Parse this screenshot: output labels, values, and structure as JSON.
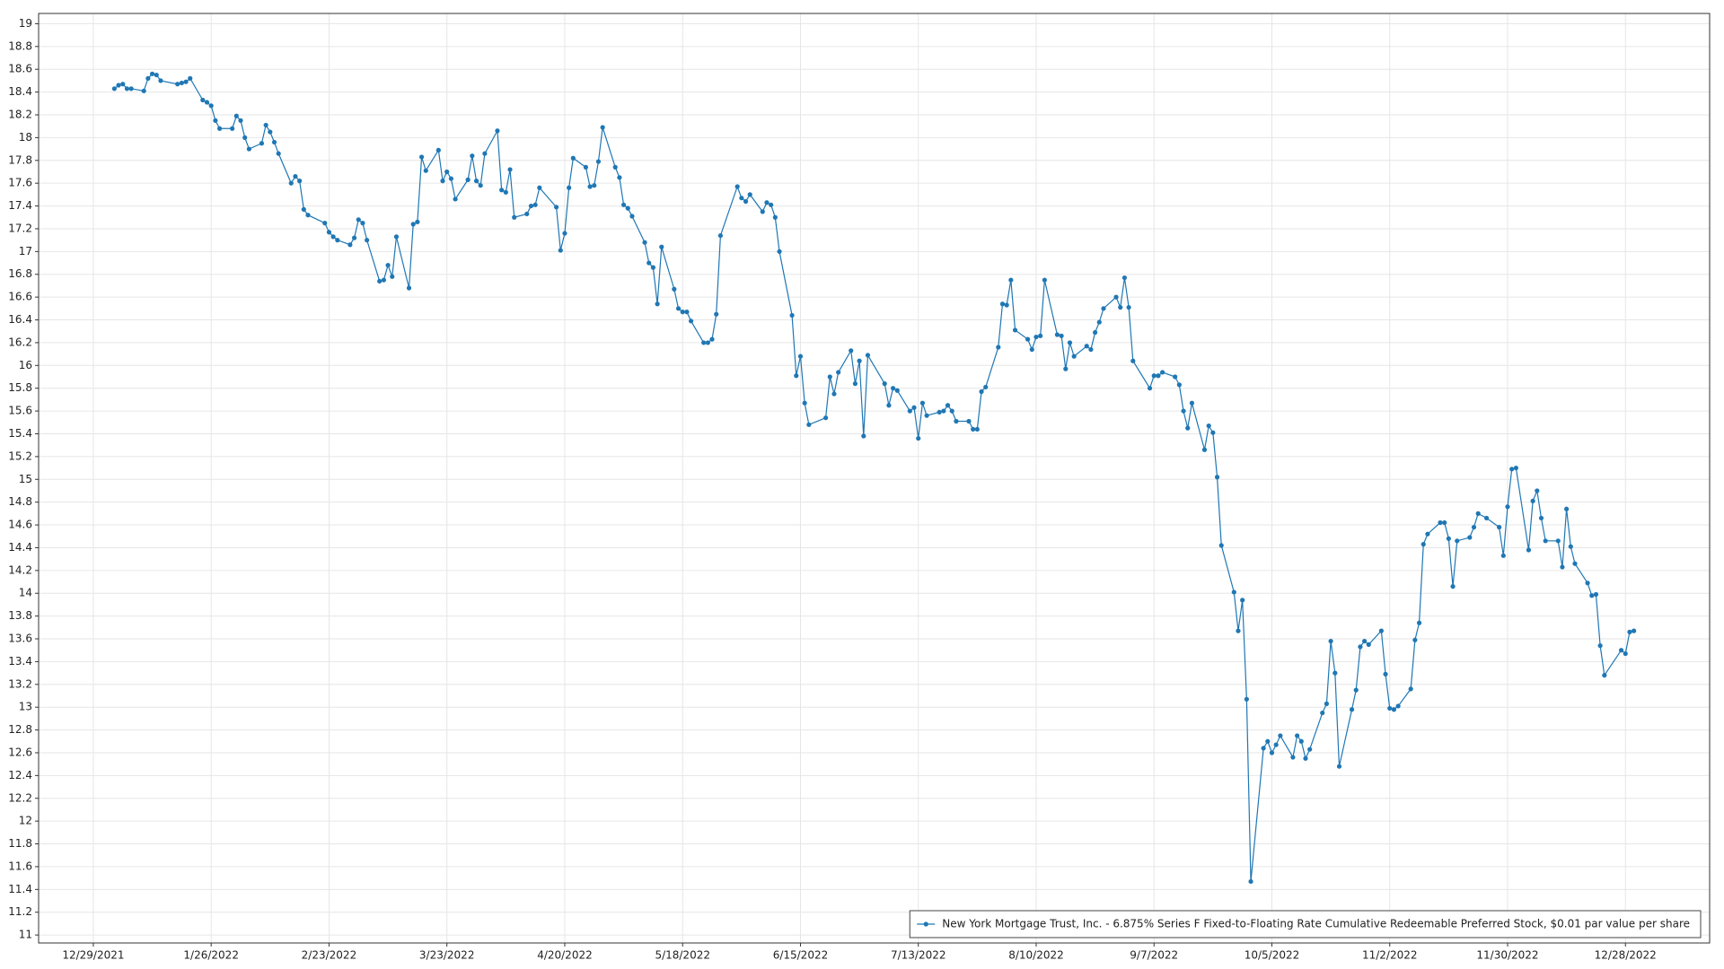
{
  "chart_data": {
    "type": "line",
    "xlim": [
      "12/16/2021",
      "1/17/2023"
    ],
    "xticks": [
      "12/29/2021",
      "1/26/2022",
      "2/23/2022",
      "3/23/2022",
      "4/20/2022",
      "5/18/2022",
      "6/15/2022",
      "7/13/2022",
      "8/10/2022",
      "9/7/2022",
      "10/5/2022",
      "11/2/2022",
      "11/30/2022",
      "12/28/2022"
    ],
    "ylim": [
      10.93,
      19.09
    ],
    "yticks": [
      11,
      11.2,
      11.4,
      11.6,
      11.8,
      12,
      12.2,
      12.4,
      12.6,
      12.8,
      13,
      13.2,
      13.4,
      13.6,
      13.8,
      14,
      14.2,
      14.4,
      14.6,
      14.8,
      15,
      15.2,
      15.4,
      15.6,
      15.8,
      16,
      16.2,
      16.4,
      16.6,
      16.8,
      17,
      17.2,
      17.4,
      17.6,
      17.8,
      18,
      18.2,
      18.4,
      18.6,
      18.8,
      19
    ],
    "grid": true,
    "legend": "bottom-right",
    "x": [
      "1/3/2022",
      "1/4/2022",
      "1/5/2022",
      "1/6/2022",
      "1/7/2022",
      "1/10/2022",
      "1/11/2022",
      "1/12/2022",
      "1/13/2022",
      "1/14/2022",
      "1/18/2022",
      "1/19/2022",
      "1/20/2022",
      "1/21/2022",
      "1/24/2022",
      "1/25/2022",
      "1/26/2022",
      "1/27/2022",
      "1/28/2022",
      "1/31/2022",
      "2/1/2022",
      "2/2/2022",
      "2/3/2022",
      "2/4/2022",
      "2/7/2022",
      "2/8/2022",
      "2/9/2022",
      "2/10/2022",
      "2/11/2022",
      "2/14/2022",
      "2/15/2022",
      "2/16/2022",
      "2/17/2022",
      "2/18/2022",
      "2/22/2022",
      "2/23/2022",
      "2/24/2022",
      "2/25/2022",
      "2/28/2022",
      "3/1/2022",
      "3/2/2022",
      "3/3/2022",
      "3/4/2022",
      "3/7/2022",
      "3/8/2022",
      "3/9/2022",
      "3/10/2022",
      "3/11/2022",
      "3/14/2022",
      "3/15/2022",
      "3/16/2022",
      "3/17/2022",
      "3/18/2022",
      "3/21/2022",
      "3/22/2022",
      "3/23/2022",
      "3/24/2022",
      "3/25/2022",
      "3/28/2022",
      "3/29/2022",
      "3/30/2022",
      "3/31/2022",
      "4/1/2022",
      "4/4/2022",
      "4/5/2022",
      "4/6/2022",
      "4/7/2022",
      "4/8/2022",
      "4/11/2022",
      "4/12/2022",
      "4/13/2022",
      "4/14/2022",
      "4/18/2022",
      "4/19/2022",
      "4/20/2022",
      "4/21/2022",
      "4/22/2022",
      "4/25/2022",
      "4/26/2022",
      "4/27/2022",
      "4/28/2022",
      "4/29/2022",
      "5/2/2022",
      "5/3/2022",
      "5/4/2022",
      "5/5/2022",
      "5/6/2022",
      "5/9/2022",
      "5/10/2022",
      "5/11/2022",
      "5/12/2022",
      "5/13/2022",
      "5/16/2022",
      "5/17/2022",
      "5/18/2022",
      "5/19/2022",
      "5/20/2022",
      "5/23/2022",
      "5/24/2022",
      "5/25/2022",
      "5/26/2022",
      "5/27/2022",
      "5/31/2022",
      "6/1/2022",
      "6/2/2022",
      "6/3/2022",
      "6/6/2022",
      "6/7/2022",
      "6/8/2022",
      "6/9/2022",
      "6/10/2022",
      "6/13/2022",
      "6/14/2022",
      "6/15/2022",
      "6/16/2022",
      "6/17/2022",
      "6/21/2022",
      "6/22/2022",
      "6/23/2022",
      "6/24/2022",
      "6/27/2022",
      "6/28/2022",
      "6/29/2022",
      "6/30/2022",
      "7/1/2022",
      "7/5/2022",
      "7/6/2022",
      "7/7/2022",
      "7/8/2022",
      "7/11/2022",
      "7/12/2022",
      "7/13/2022",
      "7/14/2022",
      "7/15/2022",
      "7/18/2022",
      "7/19/2022",
      "7/20/2022",
      "7/21/2022",
      "7/22/2022",
      "7/25/2022",
      "7/26/2022",
      "7/27/2022",
      "7/28/2022",
      "7/29/2022",
      "8/1/2022",
      "8/2/2022",
      "8/3/2022",
      "8/4/2022",
      "8/5/2022",
      "8/8/2022",
      "8/9/2022",
      "8/10/2022",
      "8/11/2022",
      "8/12/2022",
      "8/15/2022",
      "8/16/2022",
      "8/17/2022",
      "8/18/2022",
      "8/19/2022",
      "8/22/2022",
      "8/23/2022",
      "8/24/2022",
      "8/25/2022",
      "8/26/2022",
      "8/29/2022",
      "8/30/2022",
      "8/31/2022",
      "9/1/2022",
      "9/2/2022",
      "9/6/2022",
      "9/7/2022",
      "9/8/2022",
      "9/9/2022",
      "9/12/2022",
      "9/13/2022",
      "9/14/2022",
      "9/15/2022",
      "9/16/2022",
      "9/19/2022",
      "9/20/2022",
      "9/21/2022",
      "9/22/2022",
      "9/23/2022",
      "9/26/2022",
      "9/27/2022",
      "9/28/2022",
      "9/29/2022",
      "9/30/2022",
      "10/3/2022",
      "10/4/2022",
      "10/5/2022",
      "10/6/2022",
      "10/7/2022",
      "10/10/2022",
      "10/11/2022",
      "10/12/2022",
      "10/13/2022",
      "10/14/2022",
      "10/17/2022",
      "10/18/2022",
      "10/19/2022",
      "10/20/2022",
      "10/21/2022",
      "10/24/2022",
      "10/25/2022",
      "10/26/2022",
      "10/27/2022",
      "10/28/2022",
      "10/31/2022",
      "11/1/2022",
      "11/2/2022",
      "11/3/2022",
      "11/4/2022",
      "11/7/2022",
      "11/8/2022",
      "11/9/2022",
      "11/10/2022",
      "11/11/2022",
      "11/14/2022",
      "11/15/2022",
      "11/16/2022",
      "11/17/2022",
      "11/18/2022",
      "11/21/2022",
      "11/22/2022",
      "11/23/2022",
      "11/25/2022",
      "11/28/2022",
      "11/29/2022",
      "11/30/2022",
      "12/1/2022",
      "12/2/2022",
      "12/5/2022",
      "12/6/2022",
      "12/7/2022",
      "12/8/2022",
      "12/9/2022",
      "12/12/2022",
      "12/13/2022",
      "12/14/2022",
      "12/15/2022",
      "12/16/2022",
      "12/19/2022",
      "12/20/2022",
      "12/21/2022",
      "12/22/2022",
      "12/23/2022",
      "12/27/2022",
      "12/28/2022",
      "12/29/2022",
      "12/30/2022"
    ],
    "series": [
      {
        "name": "New York Mortgage Trust, Inc. - 6.875% Series F Fixed-to-Floating Rate Cumulative Redeemable Preferred Stock, $0.01 par value per share",
        "color": "#1f77b4",
        "values": [
          18.43,
          18.46,
          18.47,
          18.43,
          18.43,
          18.41,
          18.52,
          18.56,
          18.55,
          18.5,
          18.47,
          18.48,
          18.49,
          18.52,
          18.33,
          18.31,
          18.28,
          18.15,
          18.08,
          18.08,
          18.19,
          18.15,
          18.0,
          17.9,
          17.95,
          18.11,
          18.05,
          17.96,
          17.86,
          17.6,
          17.66,
          17.62,
          17.37,
          17.32,
          17.25,
          17.17,
          17.13,
          17.1,
          17.06,
          17.12,
          17.28,
          17.25,
          17.1,
          16.74,
          16.75,
          16.88,
          16.78,
          17.13,
          16.68,
          17.24,
          17.26,
          17.83,
          17.71,
          17.89,
          17.62,
          17.7,
          17.64,
          17.46,
          17.63,
          17.84,
          17.62,
          17.58,
          17.86,
          18.06,
          17.54,
          17.52,
          17.72,
          17.3,
          17.33,
          17.4,
          17.41,
          17.56,
          17.39,
          17.01,
          17.16,
          17.56,
          17.82,
          17.74,
          17.57,
          17.58,
          17.79,
          18.09,
          17.74,
          17.65,
          17.41,
          17.38,
          17.31,
          17.08,
          16.9,
          16.86,
          16.54,
          17.04,
          16.67,
          16.5,
          16.47,
          16.47,
          16.39,
          16.2,
          16.2,
          16.23,
          16.45,
          17.14,
          17.57,
          17.47,
          17.44,
          17.5,
          17.35,
          17.43,
          17.41,
          17.3,
          17.0,
          16.44,
          15.91,
          16.08,
          15.67,
          15.48,
          15.54,
          15.9,
          15.75,
          15.94,
          16.13,
          15.84,
          16.04,
          15.38,
          16.09,
          15.84,
          15.65,
          15.8,
          15.78,
          15.6,
          15.63,
          15.36,
          15.67,
          15.56,
          15.59,
          15.6,
          15.65,
          15.6,
          15.51,
          15.51,
          15.44,
          15.44,
          15.77,
          15.81,
          16.16,
          16.54,
          16.53,
          16.75,
          16.31,
          16.23,
          16.14,
          16.25,
          16.26,
          16.75,
          16.27,
          16.26,
          15.97,
          16.2,
          16.08,
          16.17,
          16.14,
          16.29,
          16.38,
          16.5,
          16.6,
          16.51,
          16.77,
          16.51,
          16.04,
          15.8,
          15.91,
          15.91,
          15.94,
          15.9,
          15.83,
          15.6,
          15.45,
          15.67,
          15.26,
          15.47,
          15.41,
          15.02,
          14.42,
          14.01,
          13.67,
          13.94,
          13.07,
          11.47,
          12.64,
          12.7,
          12.6,
          12.67,
          12.75,
          12.56,
          12.75,
          12.7,
          12.55,
          12.63,
          12.95,
          13.03,
          13.58,
          13.3,
          12.48,
          12.98,
          13.15,
          13.53,
          13.58,
          13.55,
          13.67,
          13.29,
          12.99,
          12.98,
          13.01,
          13.16,
          13.59,
          13.74,
          14.43,
          14.52,
          14.62,
          14.62,
          14.48,
          14.06,
          14.46,
          14.49,
          14.58,
          14.7,
          14.66,
          14.58,
          14.33,
          14.76,
          15.09,
          15.1,
          14.38,
          14.81,
          14.9,
          14.66,
          14.46,
          14.46,
          14.23,
          14.74,
          14.41,
          14.26,
          14.09,
          13.98,
          13.99,
          13.54,
          13.28,
          13.5,
          13.47,
          13.66,
          13.67
        ]
      }
    ]
  }
}
